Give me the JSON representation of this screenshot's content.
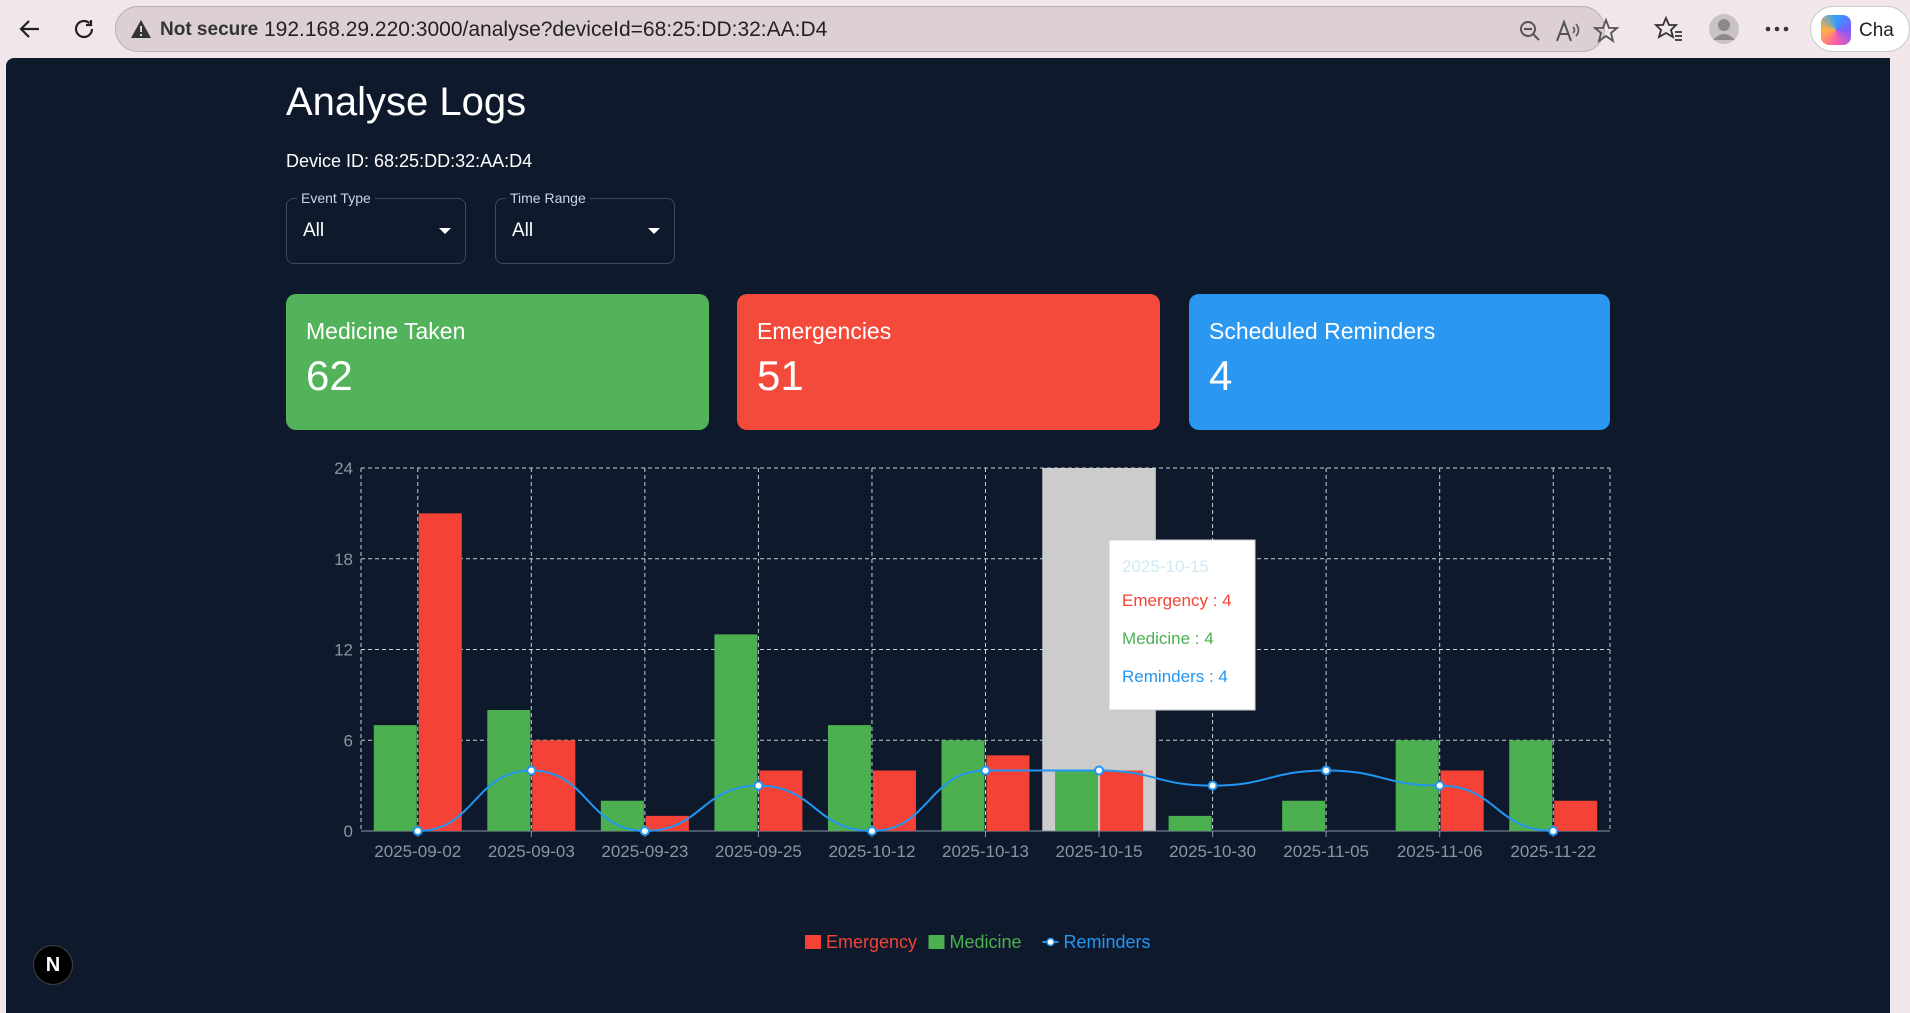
{
  "browser": {
    "not_secure_label": "Not secure",
    "url": "192.168.29.220:3000/analyse?deviceId=68:25:DD:32:AA:D4",
    "copilot_label": "Cha"
  },
  "page": {
    "title": "Analyse Logs",
    "device_line": "Device ID: 68:25:DD:32:AA:D4"
  },
  "filters": {
    "event_type": {
      "label": "Event Type",
      "value": "All"
    },
    "time_range": {
      "label": "Time Range",
      "value": "All"
    }
  },
  "cards": [
    {
      "title": "Medicine Taken",
      "value": "62",
      "color": "#53b35a"
    },
    {
      "title": "Emergencies",
      "value": "51",
      "color": "#f34a3c"
    },
    {
      "title": "Scheduled Reminders",
      "value": "4",
      "color": "#2a98f0"
    }
  ],
  "next_badge": "N",
  "chart_data": {
    "type": "bar",
    "categories": [
      "2025-09-02",
      "2025-09-03",
      "2025-09-23",
      "2025-09-25",
      "2025-10-12",
      "2025-10-13",
      "2025-10-15",
      "2025-10-30",
      "2025-11-05",
      "2025-11-06",
      "2025-11-22"
    ],
    "series": [
      {
        "name": "Medicine",
        "type": "bar",
        "color": "#4caf50",
        "values": [
          7,
          8,
          2,
          13,
          7,
          6,
          4,
          1,
          2,
          6,
          6
        ]
      },
      {
        "name": "Emergency",
        "type": "bar",
        "color": "#f44336",
        "values": [
          21,
          6,
          1,
          4,
          4,
          5,
          4,
          0,
          0,
          4,
          2
        ]
      },
      {
        "name": "Reminders",
        "type": "line",
        "color": "#2196f3",
        "values": [
          0,
          4,
          0,
          3,
          0,
          4,
          4,
          3,
          4,
          3,
          0
        ]
      }
    ],
    "yticks": [
      0,
      6,
      12,
      18,
      24
    ],
    "ylim": [
      0,
      24
    ],
    "legend_order": [
      "Emergency",
      "Medicine",
      "Reminders"
    ],
    "legend_position": "bottom-center",
    "grid": true,
    "highlighted_category": "2025-10-15",
    "tooltip": {
      "title": "2025-10-15",
      "lines": [
        {
          "text": "Emergency : 4",
          "color": "#f44336"
        },
        {
          "text": "Medicine : 4",
          "color": "#4caf50"
        },
        {
          "text": "Reminders : 4",
          "color": "#2196f3"
        }
      ]
    }
  }
}
